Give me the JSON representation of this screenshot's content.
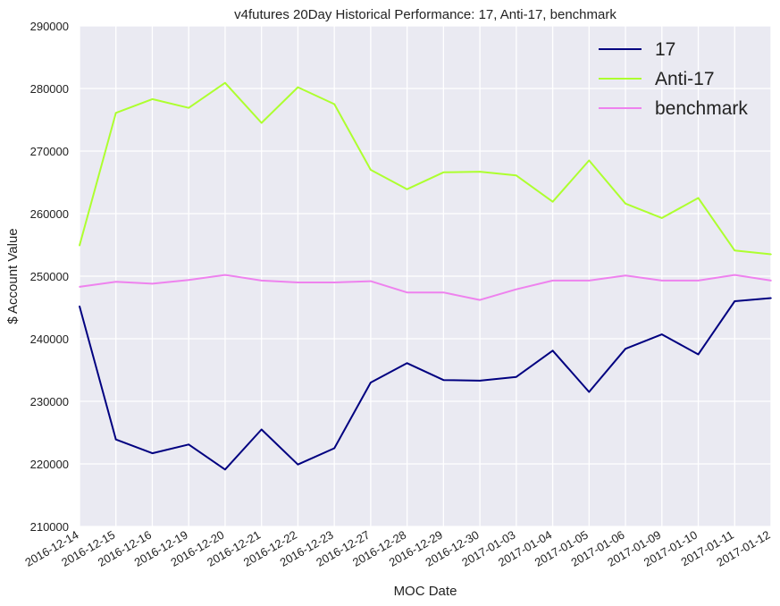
{
  "chart_data": {
    "type": "line",
    "title": "v4futures 20Day Historical Performance: 17, Anti-17, benchmark",
    "xlabel": "MOC Date",
    "ylabel": "$ Account Value",
    "ylim": [
      210000,
      290000
    ],
    "yticks": [
      "210000",
      "220000",
      "230000",
      "240000",
      "250000",
      "260000",
      "270000",
      "280000",
      "290000"
    ],
    "grid": true,
    "legend_position": "top-right",
    "categories": [
      "2016-12-14",
      "2016-12-15",
      "2016-12-16",
      "2016-12-19",
      "2016-12-20",
      "2016-12-21",
      "2016-12-22",
      "2016-12-23",
      "2016-12-27",
      "2016-12-28",
      "2016-12-29",
      "2016-12-30",
      "2017-01-03",
      "2017-01-04",
      "2017-01-05",
      "2017-01-06",
      "2017-01-09",
      "2017-01-10",
      "2017-01-11",
      "2017-01-12"
    ],
    "series": [
      {
        "name": "17",
        "color": "#000080",
        "values": [
          245200,
          223900,
          221700,
          223100,
          219100,
          225500,
          219900,
          222500,
          233000,
          236100,
          233400,
          233300,
          233900,
          238100,
          231500,
          238400,
          240700,
          237500,
          246000,
          246500
        ]
      },
      {
        "name": "Anti-17",
        "color": "#adff2f",
        "values": [
          254900,
          276100,
          278300,
          276900,
          280900,
          274500,
          280200,
          277500,
          267000,
          263900,
          266600,
          266700,
          266100,
          261900,
          268500,
          261600,
          259300,
          262500,
          254100,
          253500
        ]
      },
      {
        "name": "benchmark",
        "color": "#ee82ee",
        "values": [
          248300,
          249100,
          248800,
          249400,
          250200,
          249300,
          249000,
          249000,
          249200,
          247400,
          247400,
          246200,
          247900,
          249300,
          249300,
          250100,
          249300,
          249300,
          250200,
          249300
        ]
      }
    ]
  }
}
